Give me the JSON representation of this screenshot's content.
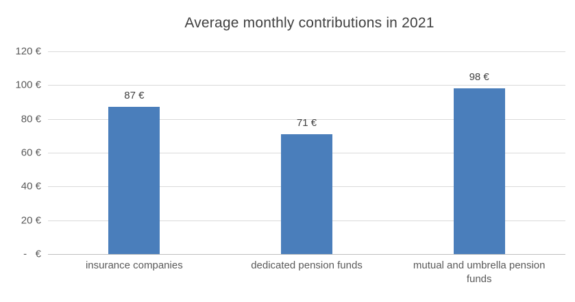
{
  "chart_data": {
    "type": "bar",
    "title": "Average monthly contributions in 2021",
    "categories": [
      "insurance companies",
      "dedicated pension funds",
      "mutual and umbrella pension funds"
    ],
    "values": [
      87,
      71,
      98
    ],
    "value_labels": [
      "87 €",
      "71 €",
      "98 €"
    ],
    "y_ticks_top_to_bottom": [
      "120 €",
      "100 €",
      "80 €",
      "60 €",
      "40 €",
      "20 €",
      " -   €"
    ],
    "ylim": [
      0,
      120
    ],
    "grid": true,
    "legend": "none",
    "bar_color": "#4a7ebb",
    "grid_color": "#d9d9d9",
    "title_color": "#404040",
    "label_color": "#595959"
  }
}
